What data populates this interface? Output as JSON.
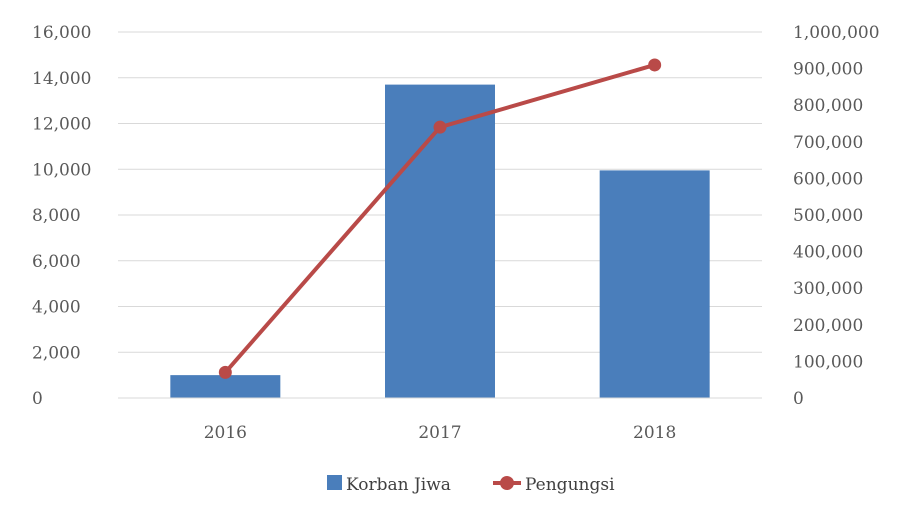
{
  "chart_data": {
    "type": "bar",
    "categories": [
      "2016",
      "2017",
      "2018"
    ],
    "series": [
      {
        "name": "Korban Jiwa",
        "type": "bar",
        "axis": "left",
        "color": "#4a7ebb",
        "values": [
          1000,
          13700,
          9950
        ]
      },
      {
        "name": "Pengungsi",
        "type": "line",
        "axis": "right",
        "color": "#b94a48",
        "values": [
          70000,
          740000,
          910000
        ]
      }
    ],
    "y_left": {
      "min": 0,
      "max": 16000,
      "ticks": [
        "0",
        "2,000",
        "4,000",
        "6,000",
        "8,000",
        "10,000",
        "12,000",
        "14,000",
        "16,000"
      ]
    },
    "y_right": {
      "min": 0,
      "max": 1000000,
      "ticks": [
        "0",
        "100,000",
        "200,000",
        "300,000",
        "400,000",
        "500,000",
        "600,000",
        "700,000",
        "800,000",
        "900,000",
        "1,000,000"
      ]
    },
    "grid": true,
    "legend_position": "bottom"
  }
}
